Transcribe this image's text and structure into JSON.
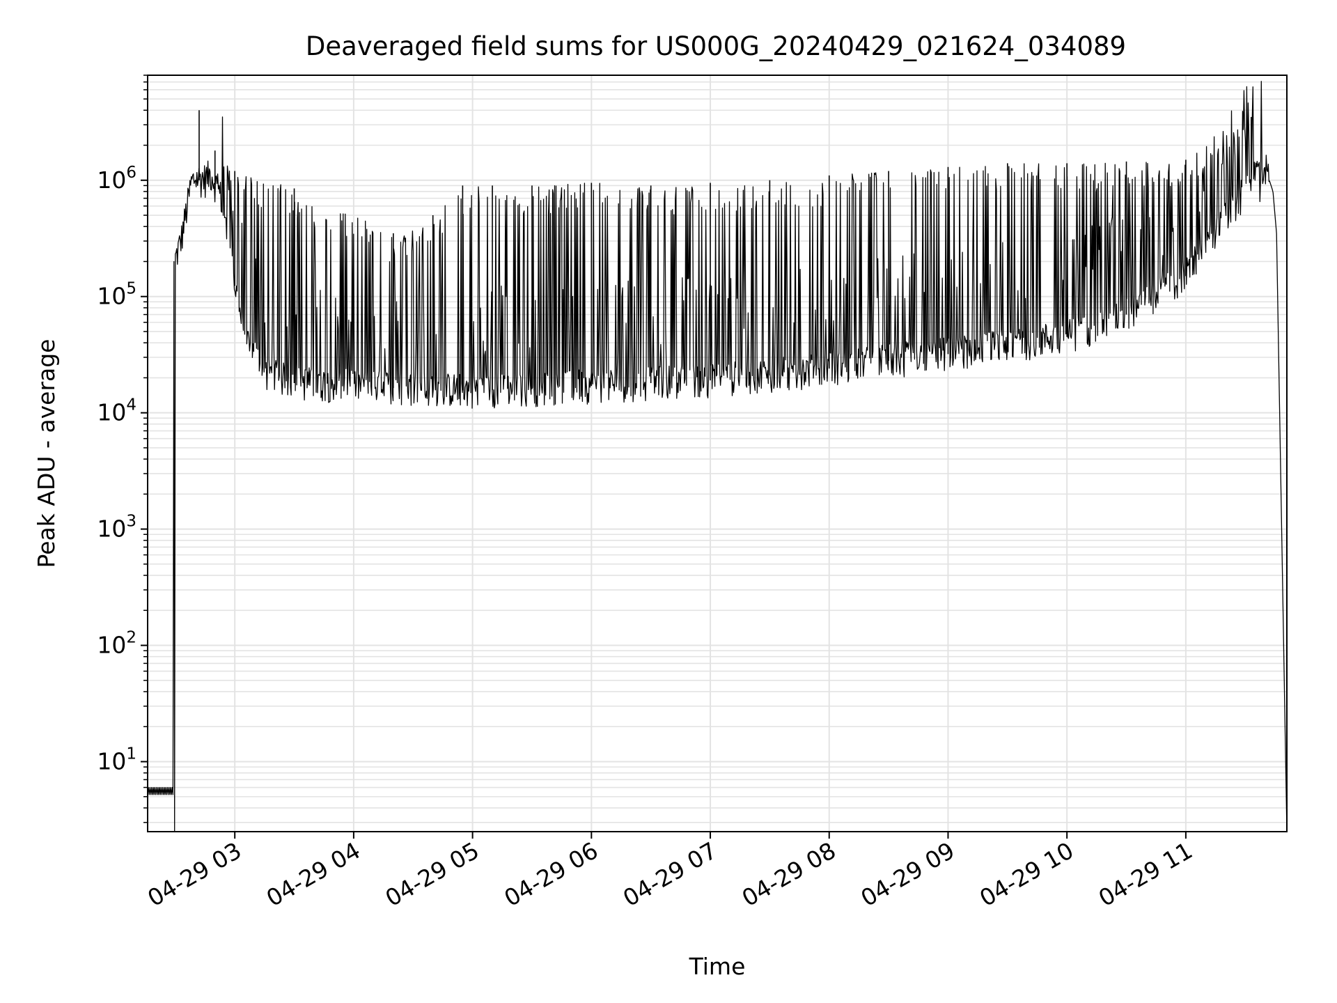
{
  "chart_data": {
    "type": "line",
    "title": "Deaveraged field sums for US000G_20240429_021624_034089",
    "xlabel": "Time",
    "ylabel": "Peak ADU - average",
    "yscale": "log",
    "ylim": [
      2.5,
      8000000
    ],
    "xlim": [
      "2024-04-29 02:16",
      "2024-04-29 11:51"
    ],
    "grid": true,
    "line_color": "#000000",
    "grid_color": "#e3e3e3",
    "x_ticks": [
      {
        "label": "04-29 03",
        "time": "2024-04-29 03:00"
      },
      {
        "label": "04-29 04",
        "time": "2024-04-29 04:00"
      },
      {
        "label": "04-29 05",
        "time": "2024-04-29 05:00"
      },
      {
        "label": "04-29 06",
        "time": "2024-04-29 06:00"
      },
      {
        "label": "04-29 07",
        "time": "2024-04-29 07:00"
      },
      {
        "label": "04-29 08",
        "time": "2024-04-29 08:00"
      },
      {
        "label": "04-29 09",
        "time": "2024-04-29 09:00"
      },
      {
        "label": "04-29 10",
        "time": "2024-04-29 10:00"
      },
      {
        "label": "04-29 11",
        "time": "2024-04-29 11:00"
      }
    ],
    "y_ticks": [
      {
        "base": "10",
        "exp": "1",
        "value": 10
      },
      {
        "base": "10",
        "exp": "2",
        "value": 100
      },
      {
        "base": "10",
        "exp": "3",
        "value": 1000
      },
      {
        "base": "10",
        "exp": "4",
        "value": 10000
      },
      {
        "base": "10",
        "exp": "5",
        "value": 100000
      },
      {
        "base": "10",
        "exp": "6",
        "value": 1000000
      }
    ],
    "series": [
      {
        "points": [
          [
            "2024-04-29 02:16",
            6
          ],
          [
            "2024-04-29 02:29",
            6
          ],
          [
            "2024-04-29 02:30",
            200000
          ],
          [
            "2024-04-29 02:33",
            300000
          ],
          [
            "2024-04-29 02:38",
            900000
          ],
          [
            "2024-04-29 02:40",
            1000000
          ],
          [
            "2024-04-29 02:43",
            1000000
          ],
          [
            "2024-04-29 02:45",
            1000000
          ],
          [
            "2024-04-29 02:48",
            1100000
          ],
          [
            "2024-04-29 02:53",
            700000
          ],
          [
            "2024-04-29 02:58",
            200000
          ],
          [
            "2024-04-29 03:03",
            60000
          ],
          [
            "2024-04-29 03:08",
            35000
          ],
          [
            "2024-04-29 03:15",
            22000
          ],
          [
            "2024-04-29 03:30",
            18000
          ],
          [
            "2024-04-29 04:00",
            17000
          ],
          [
            "2024-04-29 04:30",
            16000
          ],
          [
            "2024-04-29 05:00",
            15500
          ],
          [
            "2024-04-29 05:30",
            16000
          ],
          [
            "2024-04-29 06:00",
            17000
          ],
          [
            "2024-04-29 06:30",
            18000
          ],
          [
            "2024-04-29 07:00",
            19000
          ],
          [
            "2024-04-29 07:30",
            21000
          ],
          [
            "2024-04-29 08:00",
            24000
          ],
          [
            "2024-04-29 08:30",
            28000
          ],
          [
            "2024-04-29 09:00",
            32000
          ],
          [
            "2024-04-29 09:30",
            38000
          ],
          [
            "2024-04-29 10:00",
            45000
          ],
          [
            "2024-04-29 10:30",
            70000
          ],
          [
            "2024-04-29 11:00",
            150000
          ],
          [
            "2024-04-29 11:15",
            350000
          ],
          [
            "2024-04-29 11:30",
            800000
          ],
          [
            "2024-04-29 11:36",
            1200000
          ],
          [
            "2024-04-29 11:40",
            1300000
          ],
          [
            "2024-04-29 11:44",
            800000
          ],
          [
            "2024-04-29 11:47",
            200000
          ],
          [
            "2024-04-29 11:49",
            50000
          ],
          [
            "2024-04-29 11:50",
            5000
          ],
          [
            "2024-04-29 11:51",
            2.5
          ]
        ],
        "spikes": [
          [
            "2024-04-29 02:42",
            4000000
          ],
          [
            "2024-04-29 02:50",
            1800000
          ],
          [
            "2024-04-29 03:00",
            1200000
          ],
          [
            "2024-04-29 03:30",
            850000
          ],
          [
            "2024-04-29 04:20",
            350000
          ],
          [
            "2024-04-29 04:40",
            500000
          ],
          [
            "2024-04-29 04:55",
            900000
          ],
          [
            "2024-04-29 05:10",
            900000
          ],
          [
            "2024-04-29 05:30",
            900000
          ],
          [
            "2024-04-29 06:00",
            950000
          ],
          [
            "2024-04-29 06:30",
            900000
          ],
          [
            "2024-04-29 07:00",
            950000
          ],
          [
            "2024-04-29 07:30",
            1000000
          ],
          [
            "2024-04-29 08:00",
            1100000
          ],
          [
            "2024-04-29 08:30",
            1200000
          ],
          [
            "2024-04-29 09:00",
            1300000
          ],
          [
            "2024-04-29 09:30",
            1400000
          ],
          [
            "2024-04-29 10:00",
            1400000
          ],
          [
            "2024-04-29 10:30",
            1450000
          ],
          [
            "2024-04-29 11:00",
            1500000
          ],
          [
            "2024-04-29 11:33",
            3500000
          ]
        ]
      }
    ]
  }
}
